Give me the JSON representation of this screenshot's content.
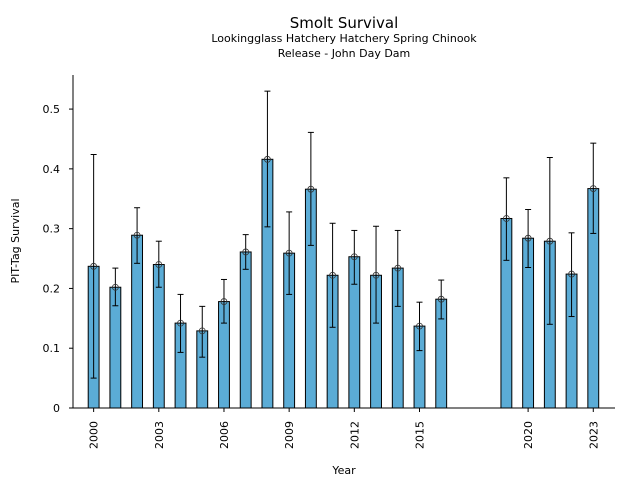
{
  "chart_data": {
    "type": "bar",
    "title": "Smolt Survival",
    "subtitle_lines": [
      "Lookingglass Hatchery Hatchery Spring Chinook",
      "Release - John Day Dam"
    ],
    "xlabel": "Year",
    "ylabel": "PIT-Tag Survival",
    "xlim": [
      1999.05,
      2024.0
    ],
    "ylim": [
      0,
      0.557
    ],
    "yticks": [
      0,
      0.1,
      0.2,
      0.3,
      0.4,
      0.5
    ],
    "ytick_labels": [
      "0",
      "0.1",
      "0.2",
      "0.3",
      "0.4",
      "0.5"
    ],
    "xticks": [
      2000,
      2003,
      2006,
      2009,
      2012,
      2015,
      2020,
      2023
    ],
    "xtick_labels": [
      "2000",
      "2003",
      "2006",
      "2009",
      "2012",
      "2015",
      "2020",
      "2023"
    ],
    "grid": false,
    "bar_color": "#5bacd6",
    "bar_edge_color": "#000000",
    "series": [
      {
        "name": "PIT-Tag Survival",
        "points": [
          {
            "x": 2000,
            "y": 0.237,
            "lo": 0.05,
            "hi": 0.424
          },
          {
            "x": 2001,
            "y": 0.202,
            "lo": 0.171,
            "hi": 0.234
          },
          {
            "x": 2002,
            "y": 0.289,
            "lo": 0.242,
            "hi": 0.335
          },
          {
            "x": 2003,
            "y": 0.24,
            "lo": 0.202,
            "hi": 0.279
          },
          {
            "x": 2004,
            "y": 0.142,
            "lo": 0.093,
            "hi": 0.19
          },
          {
            "x": 2005,
            "y": 0.129,
            "lo": 0.085,
            "hi": 0.17
          },
          {
            "x": 2006,
            "y": 0.178,
            "lo": 0.142,
            "hi": 0.215
          },
          {
            "x": 2007,
            "y": 0.261,
            "lo": 0.232,
            "hi": 0.29
          },
          {
            "x": 2008,
            "y": 0.416,
            "lo": 0.303,
            "hi": 0.53
          },
          {
            "x": 2009,
            "y": 0.259,
            "lo": 0.19,
            "hi": 0.328
          },
          {
            "x": 2010,
            "y": 0.366,
            "lo": 0.272,
            "hi": 0.461
          },
          {
            "x": 2011,
            "y": 0.222,
            "lo": 0.135,
            "hi": 0.309
          },
          {
            "x": 2012,
            "y": 0.253,
            "lo": 0.207,
            "hi": 0.297
          },
          {
            "x": 2013,
            "y": 0.222,
            "lo": 0.142,
            "hi": 0.304
          },
          {
            "x": 2014,
            "y": 0.234,
            "lo": 0.17,
            "hi": 0.297
          },
          {
            "x": 2015,
            "y": 0.137,
            "lo": 0.096,
            "hi": 0.177
          },
          {
            "x": 2016,
            "y": 0.182,
            "lo": 0.149,
            "hi": 0.214
          },
          {
            "x": 2019,
            "y": 0.317,
            "lo": 0.247,
            "hi": 0.385
          },
          {
            "x": 2020,
            "y": 0.284,
            "lo": 0.235,
            "hi": 0.332
          },
          {
            "x": 2021,
            "y": 0.279,
            "lo": 0.14,
            "hi": 0.419
          },
          {
            "x": 2022,
            "y": 0.224,
            "lo": 0.153,
            "hi": 0.293
          },
          {
            "x": 2023,
            "y": 0.367,
            "lo": 0.292,
            "hi": 0.443
          }
        ]
      }
    ]
  }
}
